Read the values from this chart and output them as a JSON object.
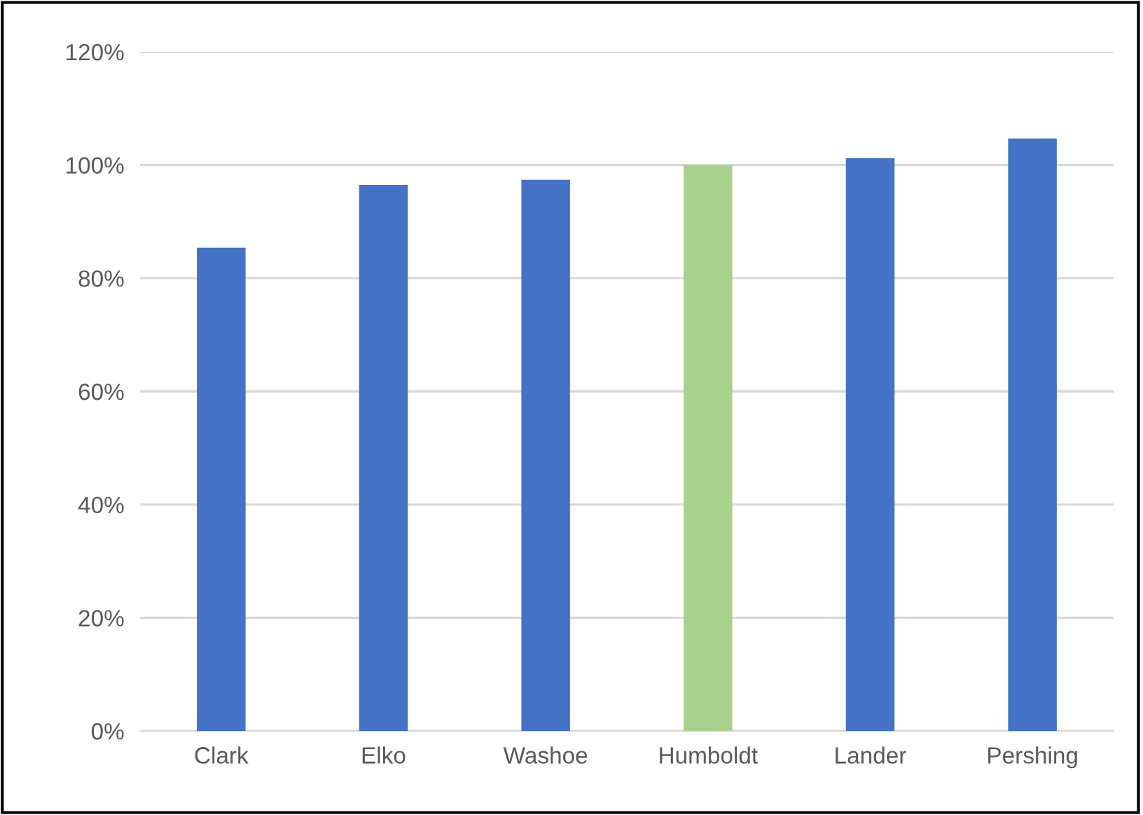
{
  "chart_data": {
    "type": "bar",
    "categories": [
      "Clark",
      "Elko",
      "Washoe",
      "Humboldt",
      "Lander",
      "Pershing"
    ],
    "values": [
      85.4,
      96.5,
      97.4,
      100,
      101.2,
      104.7
    ],
    "colors": [
      "#4472c4",
      "#4472c4",
      "#4472c4",
      "#a9d18e",
      "#4472c4",
      "#4472c4"
    ],
    "ylim": [
      0,
      120
    ],
    "yticks": [
      {
        "value": 0,
        "label": "0%"
      },
      {
        "value": 20,
        "label": "20%"
      },
      {
        "value": 40,
        "label": "40%"
      },
      {
        "value": 60,
        "label": "60%"
      },
      {
        "value": 80,
        "label": "80%"
      },
      {
        "value": 100,
        "label": "100%"
      },
      {
        "value": 120,
        "label": "120%"
      }
    ],
    "grid": "y"
  }
}
